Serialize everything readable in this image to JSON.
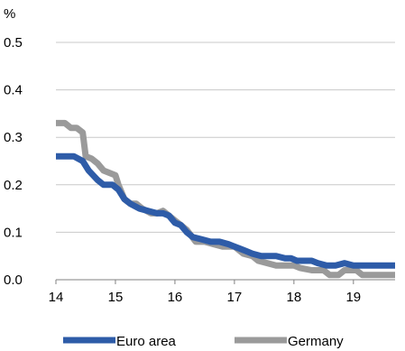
{
  "chart_data": {
    "type": "line",
    "title": "",
    "xlabel": "",
    "ylabel": "%",
    "ylim": [
      0,
      0.5
    ],
    "xlim": [
      14,
      19.7
    ],
    "y_ticks": [
      "0.0",
      "0.1",
      "0.2",
      "0.3",
      "0.4",
      "0.5"
    ],
    "y_tick_values": [
      0,
      0.1,
      0.2,
      0.3,
      0.4,
      0.5
    ],
    "x_ticks": [
      "14",
      "15",
      "16",
      "17",
      "18",
      "19"
    ],
    "x_tick_values": [
      14,
      15,
      16,
      17,
      18,
      19
    ],
    "grid": "horizontal",
    "legend_position": "bottom",
    "series": [
      {
        "name": "Euro area",
        "color": "#2e5ca8",
        "points": [
          [
            14.0,
            0.26
          ],
          [
            14.3,
            0.26
          ],
          [
            14.45,
            0.25
          ],
          [
            14.55,
            0.23
          ],
          [
            14.7,
            0.21
          ],
          [
            14.8,
            0.2
          ],
          [
            14.95,
            0.2
          ],
          [
            15.05,
            0.19
          ],
          [
            15.15,
            0.17
          ],
          [
            15.25,
            0.16
          ],
          [
            15.4,
            0.15
          ],
          [
            15.55,
            0.145
          ],
          [
            15.7,
            0.14
          ],
          [
            15.8,
            0.14
          ],
          [
            15.9,
            0.135
          ],
          [
            16.0,
            0.12
          ],
          [
            16.1,
            0.115
          ],
          [
            16.2,
            0.1
          ],
          [
            16.3,
            0.09
          ],
          [
            16.45,
            0.085
          ],
          [
            16.6,
            0.08
          ],
          [
            16.75,
            0.08
          ],
          [
            16.9,
            0.075
          ],
          [
            17.0,
            0.07
          ],
          [
            17.1,
            0.065
          ],
          [
            17.2,
            0.06
          ],
          [
            17.3,
            0.055
          ],
          [
            17.45,
            0.05
          ],
          [
            17.7,
            0.05
          ],
          [
            17.85,
            0.045
          ],
          [
            17.95,
            0.045
          ],
          [
            18.05,
            0.04
          ],
          [
            18.3,
            0.04
          ],
          [
            18.4,
            0.035
          ],
          [
            18.55,
            0.03
          ],
          [
            18.7,
            0.03
          ],
          [
            18.85,
            0.035
          ],
          [
            19.0,
            0.03
          ],
          [
            19.4,
            0.03
          ],
          [
            19.7,
            0.03
          ]
        ]
      },
      {
        "name": "Germany",
        "color": "#9a9a9a",
        "points": [
          [
            14.0,
            0.33
          ],
          [
            14.15,
            0.33
          ],
          [
            14.25,
            0.32
          ],
          [
            14.35,
            0.32
          ],
          [
            14.45,
            0.31
          ],
          [
            14.5,
            0.26
          ],
          [
            14.6,
            0.255
          ],
          [
            14.7,
            0.245
          ],
          [
            14.8,
            0.23
          ],
          [
            14.9,
            0.225
          ],
          [
            15.0,
            0.22
          ],
          [
            15.05,
            0.2
          ],
          [
            15.15,
            0.17
          ],
          [
            15.25,
            0.16
          ],
          [
            15.35,
            0.16
          ],
          [
            15.45,
            0.15
          ],
          [
            15.6,
            0.14
          ],
          [
            15.7,
            0.14
          ],
          [
            15.8,
            0.145
          ],
          [
            15.9,
            0.135
          ],
          [
            16.0,
            0.125
          ],
          [
            16.1,
            0.115
          ],
          [
            16.2,
            0.105
          ],
          [
            16.35,
            0.08
          ],
          [
            16.5,
            0.08
          ],
          [
            16.65,
            0.075
          ],
          [
            16.8,
            0.07
          ],
          [
            17.0,
            0.07
          ],
          [
            17.15,
            0.055
          ],
          [
            17.3,
            0.05
          ],
          [
            17.4,
            0.04
          ],
          [
            17.55,
            0.035
          ],
          [
            17.7,
            0.03
          ],
          [
            18.0,
            0.03
          ],
          [
            18.1,
            0.025
          ],
          [
            18.3,
            0.02
          ],
          [
            18.5,
            0.02
          ],
          [
            18.6,
            0.01
          ],
          [
            18.75,
            0.01
          ],
          [
            18.85,
            0.02
          ],
          [
            19.05,
            0.02
          ],
          [
            19.15,
            0.01
          ],
          [
            19.7,
            0.01
          ]
        ]
      }
    ]
  }
}
